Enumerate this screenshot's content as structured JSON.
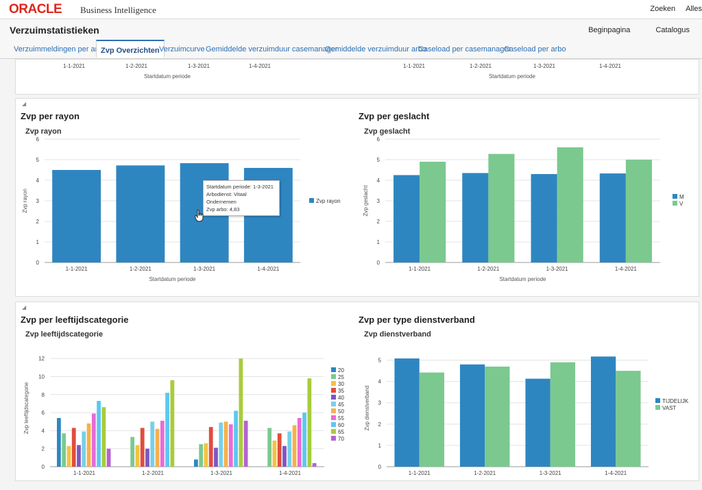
{
  "header": {
    "logo": "ORACLE",
    "product": "Business Intelligence",
    "links": [
      "Zoeken",
      "Alles"
    ]
  },
  "page": {
    "title": "Verzuimstatistieken",
    "links": [
      "Beginpagina",
      "Catalogus"
    ]
  },
  "tabs": [
    {
      "label": "Verzuimmeldingen per arbo",
      "active": false
    },
    {
      "label": "Zvp Overzichten",
      "active": true
    },
    {
      "label": "Verzuimcurve",
      "active": false
    },
    {
      "label": "Gemiddelde verzuimduur casemanager",
      "active": false
    },
    {
      "label": "Gemiddelde verzuimduur arbo",
      "active": false
    },
    {
      "label": "Caseload per casemanager",
      "active": false
    },
    {
      "label": "Caseload per arbo",
      "active": false
    }
  ],
  "top_partial": {
    "left_ticks": [
      "1-1-2021",
      "1-2-2021",
      "1-3-2021",
      "1-4-2021"
    ],
    "left_xlabel": "Startdatum periode",
    "right_ticks": [
      "1-1-2021",
      "1-2-2021",
      "1-3-2021",
      "1-4-2021"
    ],
    "right_xlabel": "Startdatum periode"
  },
  "sections": {
    "rayon": "Zvp per rayon",
    "geslacht": "Zvp per geslacht",
    "leeftijd": "Zvp per leeftijdscategorie",
    "dienstverband": "Zvp per type dienstverband"
  },
  "tooltip": {
    "lines": [
      "Startdatum periode: 1-3-2021",
      "Arbodienst: Vitaal Ondernemen",
      "Zvp arbo: 4,83"
    ]
  },
  "colors": {
    "blue": "#2e86c1",
    "green": "#7bc98f",
    "age": [
      "#2e86c1",
      "#7bc98f",
      "#f5c242",
      "#e24c3c",
      "#7e57c2",
      "#76d0e9",
      "#f7b14c",
      "#e86bd8",
      "#5bc8f0",
      "#a8cc3c",
      "#b563cf"
    ]
  },
  "chart_data": [
    {
      "id": "rayon",
      "type": "bar",
      "title": "Zvp rayon",
      "xlabel": "Startdatum periode",
      "ylabel": "Zvp rayon",
      "ylim": [
        0,
        6
      ],
      "yticks": [
        0,
        1,
        2,
        3,
        4,
        5,
        6
      ],
      "categories": [
        "1-1-2021",
        "1-2-2021",
        "1-3-2021",
        "1-4-2021"
      ],
      "series": [
        {
          "name": "Zvp rayon",
          "values": [
            4.5,
            4.72,
            4.83,
            4.6
          ]
        }
      ],
      "grid": true,
      "legend": "right"
    },
    {
      "id": "geslacht",
      "type": "bar",
      "title": "Zvp geslacht",
      "xlabel": "Startdatum periode",
      "ylabel": "Zvp geslacht",
      "ylim": [
        0,
        6
      ],
      "yticks": [
        0,
        1,
        2,
        3,
        4,
        5,
        6
      ],
      "categories": [
        "1-1-2021",
        "1-2-2021",
        "1-3-2021",
        "1-4-2021"
      ],
      "series": [
        {
          "name": "M",
          "values": [
            4.25,
            4.35,
            4.3,
            4.33
          ]
        },
        {
          "name": "V",
          "values": [
            4.9,
            5.28,
            5.6,
            5.0
          ]
        }
      ],
      "grid": true,
      "legend": "right"
    },
    {
      "id": "leeftijd",
      "type": "bar",
      "title": "Zvp leeftijdscategorie",
      "xlabel": "",
      "ylabel": "Zvp leeftijdscategorie",
      "ylim": [
        0,
        13
      ],
      "yticks": [
        0,
        2,
        4,
        6,
        8,
        10,
        12
      ],
      "categories": [
        "1-1-2021",
        "1-2-2021",
        "1-3-2021",
        "1-4-2021"
      ],
      "series": [
        {
          "name": "20",
          "values": [
            5.4,
            0,
            0.8,
            0
          ]
        },
        {
          "name": "25",
          "values": [
            3.7,
            3.3,
            2.5,
            4.3
          ]
        },
        {
          "name": "30",
          "values": [
            2.3,
            2.4,
            2.6,
            2.9
          ]
        },
        {
          "name": "35",
          "values": [
            4.3,
            4.3,
            4.4,
            3.7
          ]
        },
        {
          "name": "40",
          "values": [
            2.4,
            2.0,
            2.1,
            2.3
          ]
        },
        {
          "name": "45",
          "values": [
            3.9,
            5.0,
            4.9,
            3.9
          ]
        },
        {
          "name": "50",
          "values": [
            4.8,
            4.2,
            5.0,
            4.6
          ]
        },
        {
          "name": "55",
          "values": [
            5.9,
            5.1,
            4.7,
            5.4
          ]
        },
        {
          "name": "60",
          "values": [
            7.3,
            8.2,
            6.2,
            6.0
          ]
        },
        {
          "name": "65",
          "values": [
            6.6,
            9.6,
            12.0,
            9.8
          ]
        },
        {
          "name": "70",
          "values": [
            2.0,
            0,
            5.1,
            0.4
          ]
        }
      ],
      "grid": true,
      "legend": "right"
    },
    {
      "id": "dienstverband",
      "type": "bar",
      "title": "Zvp dienstverband",
      "xlabel": "",
      "ylabel": "Zvp dienstverband",
      "ylim": [
        0,
        5.5
      ],
      "yticks": [
        0,
        1,
        2,
        3,
        4,
        5
      ],
      "categories": [
        "1-1-2021",
        "1-2-2021",
        "1-3-2021",
        "1-4-2021"
      ],
      "series": [
        {
          "name": "TIJDELIJK",
          "values": [
            5.08,
            4.8,
            4.13,
            5.17
          ]
        },
        {
          "name": "VAST",
          "values": [
            4.42,
            4.7,
            4.9,
            4.5
          ]
        }
      ],
      "grid": true,
      "legend": "right"
    }
  ]
}
